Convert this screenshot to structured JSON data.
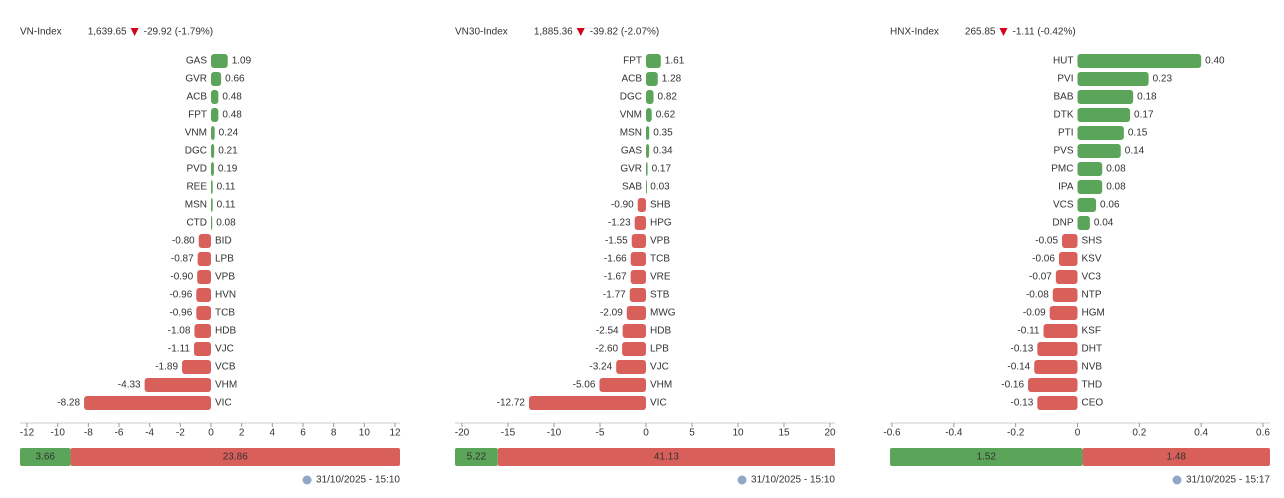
{
  "chart_data": [
    {
      "type": "bar",
      "orientation": "horizontal",
      "title": "VN-Index",
      "index_value": "1,639.65",
      "change": "-29.92 (-1.79%)",
      "categories": [
        "GAS",
        "GVR",
        "ACB",
        "FPT",
        "VNM",
        "DGC",
        "PVD",
        "REE",
        "MSN",
        "CTD",
        "BID",
        "LPB",
        "VPB",
        "HVN",
        "TCB",
        "HDB",
        "VJC",
        "VCB",
        "VHM",
        "VIC"
      ],
      "values": [
        1.09,
        0.66,
        0.48,
        0.48,
        0.24,
        0.21,
        0.19,
        0.11,
        0.11,
        0.08,
        -0.8,
        -0.87,
        -0.9,
        -0.96,
        -0.96,
        -1.08,
        -1.11,
        -1.89,
        -4.33,
        -8.28
      ],
      "value_labels": [
        "1.09",
        "0.66",
        "0.48",
        "0.48",
        "0.24",
        "0.21",
        "0.19",
        "0.11",
        "0.11",
        "0.08",
        "-0.80",
        "-0.87",
        "-0.90",
        "-0.96",
        "-0.96",
        "-1.08",
        "-1.11",
        "-1.89",
        "-4.33",
        "-8.28"
      ],
      "xlim": [
        -12,
        12
      ],
      "xticks": [
        -12,
        -10,
        -8,
        -6,
        -4,
        -2,
        0,
        2,
        4,
        6,
        8,
        10,
        12
      ],
      "colors": [
        "#5aa55a",
        "#d9605a"
      ],
      "breadth": [
        3.66,
        23.86
      ],
      "timestamp": "31/10/2025 - 15:10"
    },
    {
      "type": "bar",
      "orientation": "horizontal",
      "title": "VN30-Index",
      "index_value": "1,885.36",
      "change": "-39.82 (-2.07%)",
      "categories": [
        "FPT",
        "ACB",
        "DGC",
        "VNM",
        "MSN",
        "GAS",
        "GVR",
        "SAB",
        "SHB",
        "HPG",
        "VPB",
        "TCB",
        "VRE",
        "STB",
        "MWG",
        "HDB",
        "LPB",
        "VJC",
        "VHM",
        "VIC"
      ],
      "values": [
        1.61,
        1.28,
        0.82,
        0.62,
        0.35,
        0.34,
        0.17,
        0.03,
        -0.9,
        -1.23,
        -1.55,
        -1.66,
        -1.67,
        -1.77,
        -2.09,
        -2.54,
        -2.6,
        -3.24,
        -5.06,
        -12.72
      ],
      "value_labels": [
        "1.61",
        "1.28",
        "0.82",
        "0.62",
        "0.35",
        "0.34",
        "0.17",
        "0.03",
        "-0.90",
        "-1.23",
        "-1.55",
        "-1.66",
        "-1.67",
        "-1.77",
        "-2.09",
        "-2.54",
        "-2.60",
        "-3.24",
        "-5.06",
        "-12.72"
      ],
      "xlim": [
        -20,
        20
      ],
      "xticks": [
        -20,
        -15,
        -10,
        -5,
        0,
        5,
        10,
        15,
        20
      ],
      "colors": [
        "#5aa55a",
        "#d9605a"
      ],
      "breadth": [
        5.22,
        41.13
      ],
      "timestamp": "31/10/2025 - 15:10"
    },
    {
      "type": "bar",
      "orientation": "horizontal",
      "title": "HNX-Index",
      "index_value": "265.85",
      "change": "-1.11 (-0.42%)",
      "categories": [
        "HUT",
        "PVI",
        "BAB",
        "DTK",
        "PTI",
        "PVS",
        "PMC",
        "IPA",
        "VCS",
        "DNP",
        "SHS",
        "KSV",
        "VC3",
        "NTP",
        "HGM",
        "KSF",
        "DHT",
        "NVB",
        "THD",
        "CEO"
      ],
      "values": [
        0.4,
        0.23,
        0.18,
        0.17,
        0.15,
        0.14,
        0.08,
        0.08,
        0.06,
        0.04,
        -0.05,
        -0.06,
        -0.07,
        -0.08,
        -0.09,
        -0.11,
        -0.13,
        -0.14,
        -0.16,
        -0.13
      ],
      "value_labels": [
        "0.40",
        "0.23",
        "0.18",
        "0.17",
        "0.15",
        "0.14",
        "0.08",
        "0.08",
        "0.06",
        "0.04",
        "-0.05",
        "-0.06",
        "-0.07",
        "-0.08",
        "-0.09",
        "-0.11",
        "-0.13",
        "-0.14",
        "-0.16",
        "-0.13"
      ],
      "xlim": [
        -0.6,
        0.6
      ],
      "xticks": [
        -0.6,
        -0.4,
        -0.2,
        0,
        0.2,
        0.4,
        0.6
      ],
      "colors": [
        "#5aa55a",
        "#d9605a"
      ],
      "breadth": [
        1.52,
        1.48
      ],
      "timestamp": "31/10/2025 - 15:17"
    }
  ]
}
